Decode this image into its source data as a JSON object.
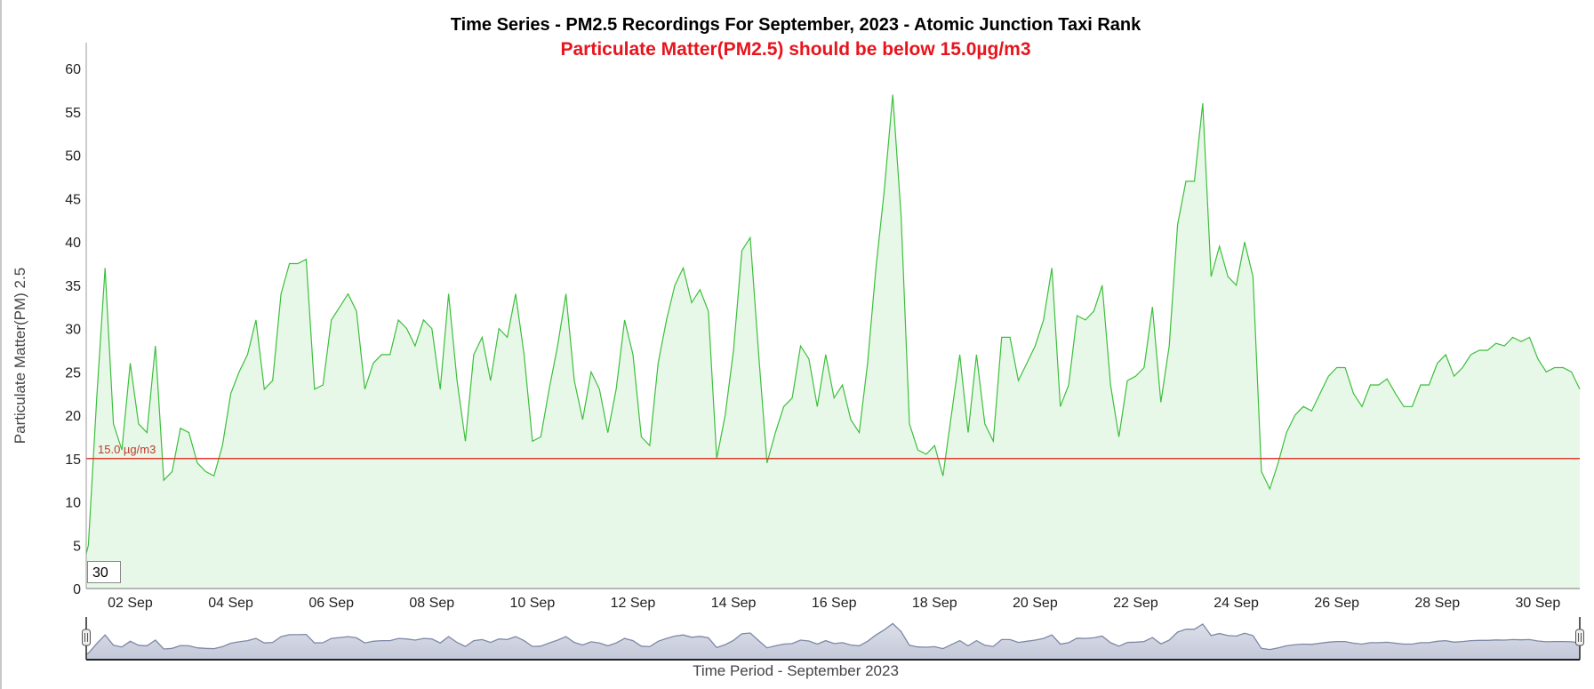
{
  "chart_data": {
    "type": "area",
    "title": "Time Series - PM2.5 Recordings For September, 2023 - Atomic Junction Taxi Rank",
    "subtitle": "Particulate Matter(PM2.5) should be below 15.0µg/m3",
    "xlabel": "Time Period - September 2023",
    "ylabel": "Particulate Matter(PM) 2.5",
    "ylim": [
      0,
      63
    ],
    "y_ticks": [
      "0",
      "5",
      "10",
      "15",
      "20",
      "25",
      "30",
      "35",
      "40",
      "45",
      "50",
      "55",
      "60"
    ],
    "x_ticks": [
      "02 Sep",
      "04 Sep",
      "06 Sep",
      "08 Sep",
      "10 Sep",
      "12 Sep",
      "14 Sep",
      "16 Sep",
      "18 Sep",
      "20 Sep",
      "22 Sep",
      "24 Sep",
      "26 Sep",
      "28 Sep",
      "30 Sep"
    ],
    "x_start": "2023-09-01 04:00",
    "x_interval_hours": 4,
    "threshold": {
      "value": 15.0,
      "label": "15.0 µg/m3",
      "color": "#e03c31"
    },
    "series": [
      {
        "name": "PM2.5",
        "color": "#3cbf3c",
        "fill": "#e8f8e8",
        "values": [
          5,
          22,
          37,
          19,
          16,
          26,
          19,
          18,
          28,
          12.5,
          13.5,
          18.5,
          18,
          14.5,
          13.5,
          13,
          16.5,
          22.5,
          25,
          27,
          31,
          23,
          24,
          34,
          37.5,
          37.5,
          38,
          23,
          23.5,
          31,
          32.5,
          34,
          32,
          23,
          26,
          27,
          27,
          31,
          30,
          28,
          31,
          30,
          23,
          34,
          24,
          17,
          27,
          29,
          24,
          30,
          29,
          34,
          27,
          17,
          17.5,
          23,
          28,
          34,
          24,
          19.5,
          25,
          23,
          18,
          23,
          31,
          27,
          17.5,
          16.5,
          26,
          31,
          35,
          37,
          33,
          34.5,
          32,
          15,
          20,
          27.5,
          39,
          40.5,
          27,
          14.5,
          18,
          21,
          22,
          28,
          26.5,
          21,
          27,
          22,
          23.5,
          19.5,
          18,
          26,
          37,
          46,
          57,
          43,
          19,
          16,
          15.5,
          16.5,
          13,
          20,
          27,
          18,
          27,
          19,
          17,
          29,
          29,
          24,
          26,
          28,
          31,
          37,
          21,
          23.5,
          31.5,
          31,
          32,
          35,
          23.5,
          17.5,
          24,
          24.5,
          25.5,
          32.5,
          21.5,
          28,
          42,
          47,
          47,
          56,
          36,
          39.5,
          36,
          35,
          40,
          36,
          13.5,
          11.5,
          14.5,
          18,
          20,
          21,
          20.5,
          22.5,
          24.5,
          25.5,
          25.5,
          22.5,
          21,
          23.5,
          23.5,
          24.2,
          22.5,
          21,
          21,
          23.5,
          23.5,
          26,
          27,
          24.5,
          25.5,
          27,
          27.5,
          27.5,
          28.3,
          28,
          29,
          28.5,
          29,
          26.5,
          25,
          25.5,
          25.5,
          25,
          23
        ]
      }
    ],
    "grid": false,
    "legend": "none"
  },
  "range_input": {
    "value": "30"
  },
  "navigator": {
    "fill": "#c3c8d8",
    "stroke": "#7d88a6"
  }
}
